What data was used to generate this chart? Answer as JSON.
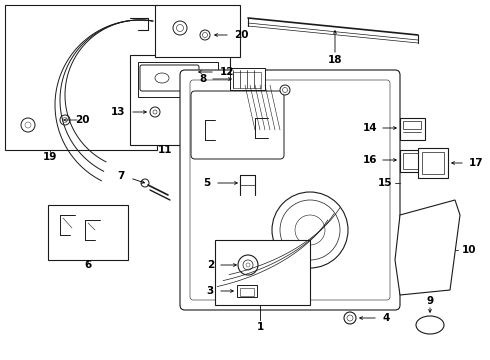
{
  "bg_color": "#ffffff",
  "line_color": "#1a1a1a",
  "fig_width": 4.9,
  "fig_height": 3.6,
  "dpi": 100,
  "label_fs": 7.5,
  "lw": 0.8
}
